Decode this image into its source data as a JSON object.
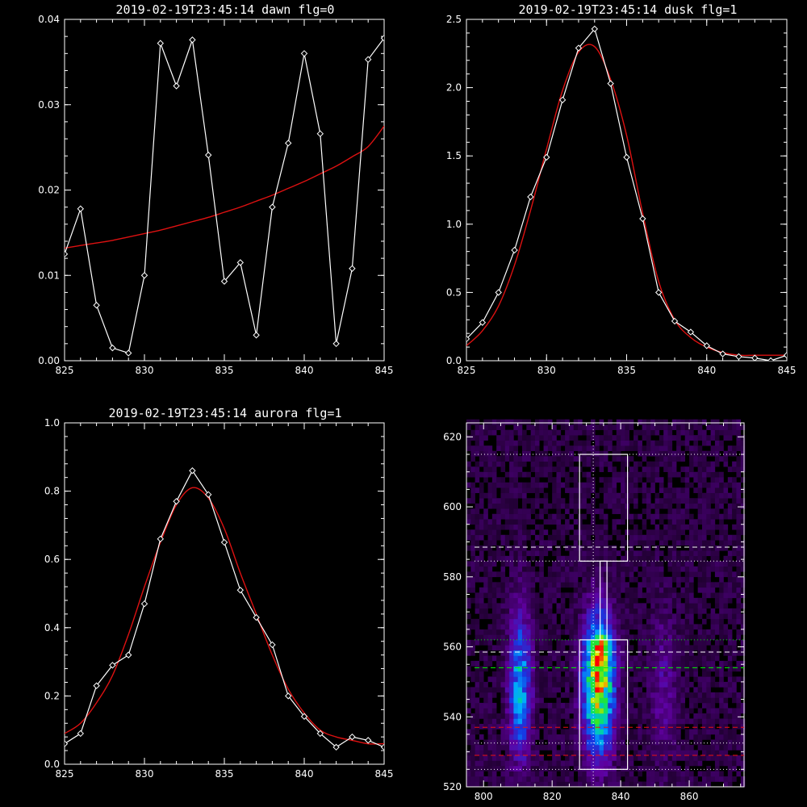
{
  "chart_data": [
    {
      "type": "line",
      "title": "2019-02-19T23:45:14 dawn flg=0",
      "xlim": [
        825,
        845
      ],
      "ylim": [
        0,
        0.04
      ],
      "xticks": [
        825,
        830,
        835,
        840,
        845
      ],
      "yticks": [
        0.0,
        0.01,
        0.02,
        0.03,
        0.04
      ],
      "ytick_labels": [
        "0.00",
        "0.01",
        "0.02",
        "0.03",
        "0.04"
      ],
      "x": [
        825,
        826,
        827,
        828,
        829,
        830,
        831,
        832,
        833,
        834,
        835,
        836,
        837,
        838,
        839,
        840,
        841,
        842,
        843,
        844,
        845
      ],
      "series": [
        {
          "values": [
            0.0125,
            0.0178,
            0.0065,
            0.0015,
            0.0009,
            0.01,
            0.0372,
            0.0322,
            0.0376,
            0.0241,
            0.0093,
            0.0115,
            0.003,
            0.018,
            0.0255,
            0.036,
            0.0266,
            0.002,
            0.0108,
            0.0353,
            0.0378
          ]
        },
        {
          "values": [
            0.0132,
            0.0135,
            0.0138,
            0.0141,
            0.0145,
            0.0149,
            0.0153,
            0.0158,
            0.0163,
            0.0168,
            0.0174,
            0.018,
            0.0187,
            0.0194,
            0.0202,
            0.021,
            0.0219,
            0.0228,
            0.0239,
            0.0251,
            0.0275
          ]
        }
      ],
      "colors": {
        "data": "#ffffff",
        "fit": "#dd1111"
      }
    },
    {
      "type": "line",
      "title": "2019-02-19T23:45:14 dusk flg=1",
      "xlim": [
        825,
        845
      ],
      "ylim": [
        0,
        2.5
      ],
      "xticks": [
        825,
        830,
        835,
        840,
        845
      ],
      "yticks": [
        0.0,
        0.5,
        1.0,
        1.5,
        2.0,
        2.5
      ],
      "ytick_labels": [
        "0.0",
        "0.5",
        "1.0",
        "1.5",
        "2.0",
        "2.5"
      ],
      "x": [
        825,
        826,
        827,
        828,
        829,
        830,
        831,
        832,
        833,
        834,
        835,
        836,
        837,
        838,
        839,
        840,
        841,
        842,
        843,
        844,
        845
      ],
      "series": [
        {
          "values": [
            0.16,
            0.28,
            0.5,
            0.81,
            1.2,
            1.49,
            1.91,
            2.29,
            2.43,
            2.03,
            1.49,
            1.04,
            0.5,
            0.29,
            0.21,
            0.11,
            0.05,
            0.03,
            0.02,
            0.0,
            0.04
          ]
        },
        {
          "values": [
            0.11,
            0.22,
            0.4,
            0.7,
            1.1,
            1.55,
            1.98,
            2.26,
            2.3,
            2.06,
            1.65,
            1.08,
            0.58,
            0.3,
            0.17,
            0.1,
            0.06,
            0.04,
            0.04,
            0.04,
            0.04
          ]
        }
      ],
      "colors": {
        "data": "#ffffff",
        "fit": "#dd1111"
      }
    },
    {
      "type": "line",
      "title": "2019-02-19T23:45:14 aurora flg=1",
      "xlim": [
        825,
        845
      ],
      "ylim": [
        0,
        1.0
      ],
      "xticks": [
        825,
        830,
        835,
        840,
        845
      ],
      "yticks": [
        0.0,
        0.2,
        0.4,
        0.6,
        0.8,
        1.0
      ],
      "ytick_labels": [
        "0.0",
        "0.2",
        "0.4",
        "0.6",
        "0.8",
        "1.0"
      ],
      "x": [
        825,
        826,
        827,
        828,
        829,
        830,
        831,
        832,
        833,
        834,
        835,
        836,
        837,
        838,
        839,
        840,
        841,
        842,
        843,
        844,
        845
      ],
      "series": [
        {
          "values": [
            0.06,
            0.09,
            0.23,
            0.29,
            0.32,
            0.47,
            0.66,
            0.77,
            0.86,
            0.79,
            0.65,
            0.51,
            0.43,
            0.35,
            0.2,
            0.14,
            0.09,
            0.05,
            0.08,
            0.07,
            0.05
          ]
        },
        {
          "values": [
            0.09,
            0.12,
            0.18,
            0.26,
            0.38,
            0.52,
            0.65,
            0.76,
            0.81,
            0.78,
            0.69,
            0.56,
            0.44,
            0.32,
            0.22,
            0.15,
            0.1,
            0.08,
            0.07,
            0.06,
            0.06
          ]
        }
      ],
      "colors": {
        "data": "#ffffff",
        "fit": "#dd1111"
      }
    },
    {
      "type": "heatmap",
      "xlim": [
        795,
        876
      ],
      "ylim": [
        520,
        624
      ],
      "xticks": [
        800,
        820,
        840,
        860
      ],
      "yticks": [
        520,
        540,
        560,
        580,
        600,
        620
      ],
      "blobs": [
        {
          "x": 810,
          "y": 548,
          "sx": 2.2,
          "sy": 14,
          "amp": 0.42
        },
        {
          "x": 833,
          "y": 549,
          "sx": 3.0,
          "sy": 13,
          "amp": 0.78
        },
        {
          "x": 834,
          "y": 558,
          "sx": 1.6,
          "sy": 3,
          "amp": 0.35
        },
        {
          "x": 852,
          "y": 548,
          "sx": 2.5,
          "sy": 14,
          "amp": 0.12
        }
      ],
      "boxes": [
        {
          "x0": 828,
          "x1": 842,
          "y0": 525,
          "y1": 562
        },
        {
          "x0": 828,
          "x1": 842,
          "y0": 584.5,
          "y1": 615
        },
        {
          "x0": 834,
          "x1": 836,
          "y0": 562,
          "y1": 584.5
        }
      ],
      "vline_x": 832,
      "hlines": [
        {
          "y": 615,
          "color": "#ffffff",
          "style": "dotted"
        },
        {
          "y": 588.5,
          "color": "#ffffff",
          "style": "dashed"
        },
        {
          "y": 584.5,
          "color": "#ffffff",
          "style": "dotted"
        },
        {
          "y": 562,
          "color": "#00ee00",
          "style": "dotted"
        },
        {
          "y": 558.5,
          "color": "#ffffff",
          "style": "dashed"
        },
        {
          "y": 554,
          "color": "#00ee00",
          "style": "dashed"
        },
        {
          "y": 537,
          "color": "#ee1111",
          "style": "dashed"
        },
        {
          "y": 532.5,
          "color": "#ffffff",
          "style": "dotted"
        },
        {
          "y": 529,
          "color": "#ee1111",
          "style": "dashed"
        },
        {
          "y": 525,
          "color": "#ffffff",
          "style": "dotted"
        }
      ]
    }
  ]
}
